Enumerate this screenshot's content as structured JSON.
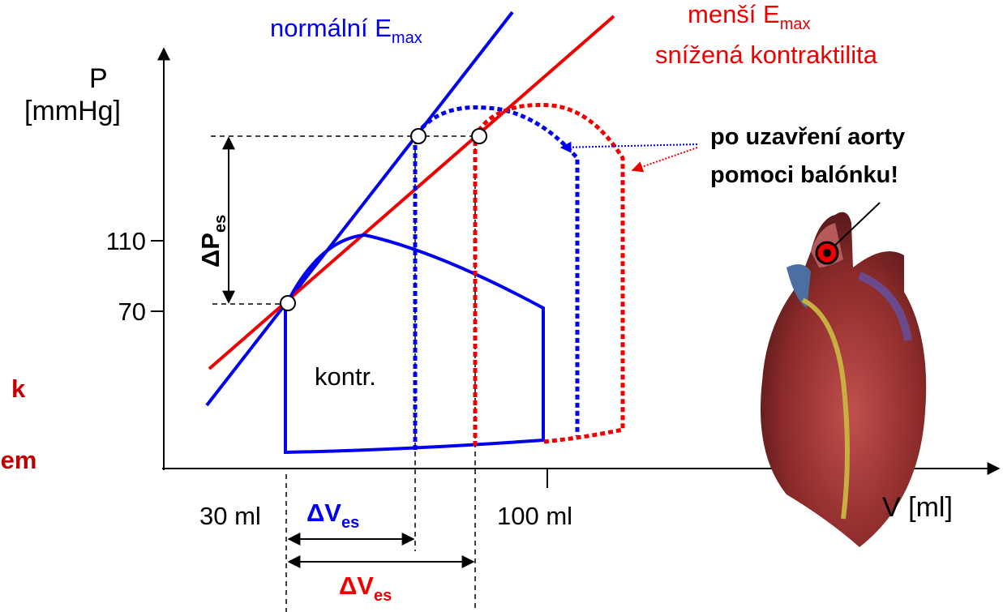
{
  "labels": {
    "normal": {
      "main": "normální E",
      "sub": "max"
    },
    "reduced": {
      "main": "menší E",
      "sub": "max",
      "line2": "snížená kontraktilita"
    },
    "y_axis": {
      "symbol": "P",
      "unit": "[mmHg]"
    },
    "y_ticks": [
      "110",
      "70"
    ],
    "delta_p": {
      "main": "ΔP",
      "sub": "es"
    },
    "loop": "kontr.",
    "note": [
      "po uzavření aorty",
      "pomoci balónku!"
    ],
    "x_ticks": [
      "30 ml",
      "100 ml"
    ],
    "x_axis": "V [ml]",
    "delta_v_blue": {
      "main": "ΔV",
      "sub": "es"
    },
    "delta_v_red": {
      "main": "ΔV",
      "sub": "es"
    },
    "left_fragments": [
      "k",
      "jem"
    ]
  }
}
